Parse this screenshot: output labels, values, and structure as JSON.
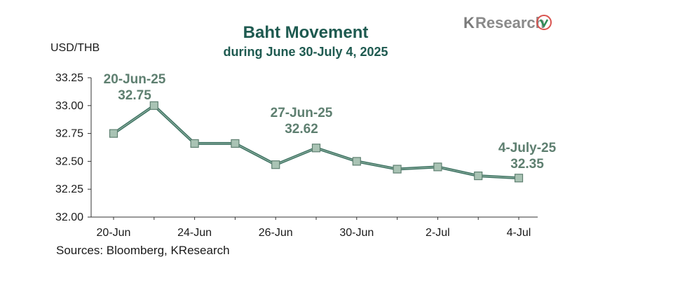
{
  "logo": {
    "k": "K",
    "rest": "Research",
    "icon": "leaf-logo-icon"
  },
  "colors": {
    "title": "#1e5a50",
    "line": "#3d7262",
    "marker_fill": "#a9c3b4",
    "marker_stroke": "#5e7f70",
    "annotation": "#5e7f70"
  },
  "source": "Sources: Bloomberg, KResearch",
  "chart_data": {
    "type": "line",
    "title": "Baht Movement",
    "subtitle": "during June 30-July 4, 2025",
    "ylabel": "USD/THB",
    "xlabel": "",
    "ylim": [
      32.0,
      33.25
    ],
    "yticks": [
      "32.00",
      "32.25",
      "32.50",
      "32.75",
      "33.00",
      "33.25"
    ],
    "x_tick_labels": [
      "20-Jun",
      "24-Jun",
      "26-Jun",
      "30-Jun",
      "2-Jul",
      "4-Jul"
    ],
    "grid": false,
    "series": [
      {
        "values": [
          32.75,
          33.0,
          32.66,
          32.66,
          32.47,
          32.62,
          32.5,
          32.43,
          32.45,
          32.37,
          32.35
        ]
      }
    ],
    "annotations": [
      {
        "date": "20-Jun-25",
        "value": "32.75"
      },
      {
        "date": "27-Jun-25",
        "value": "32.62"
      },
      {
        "date": "4-July-25",
        "value": "32.35"
      }
    ]
  }
}
